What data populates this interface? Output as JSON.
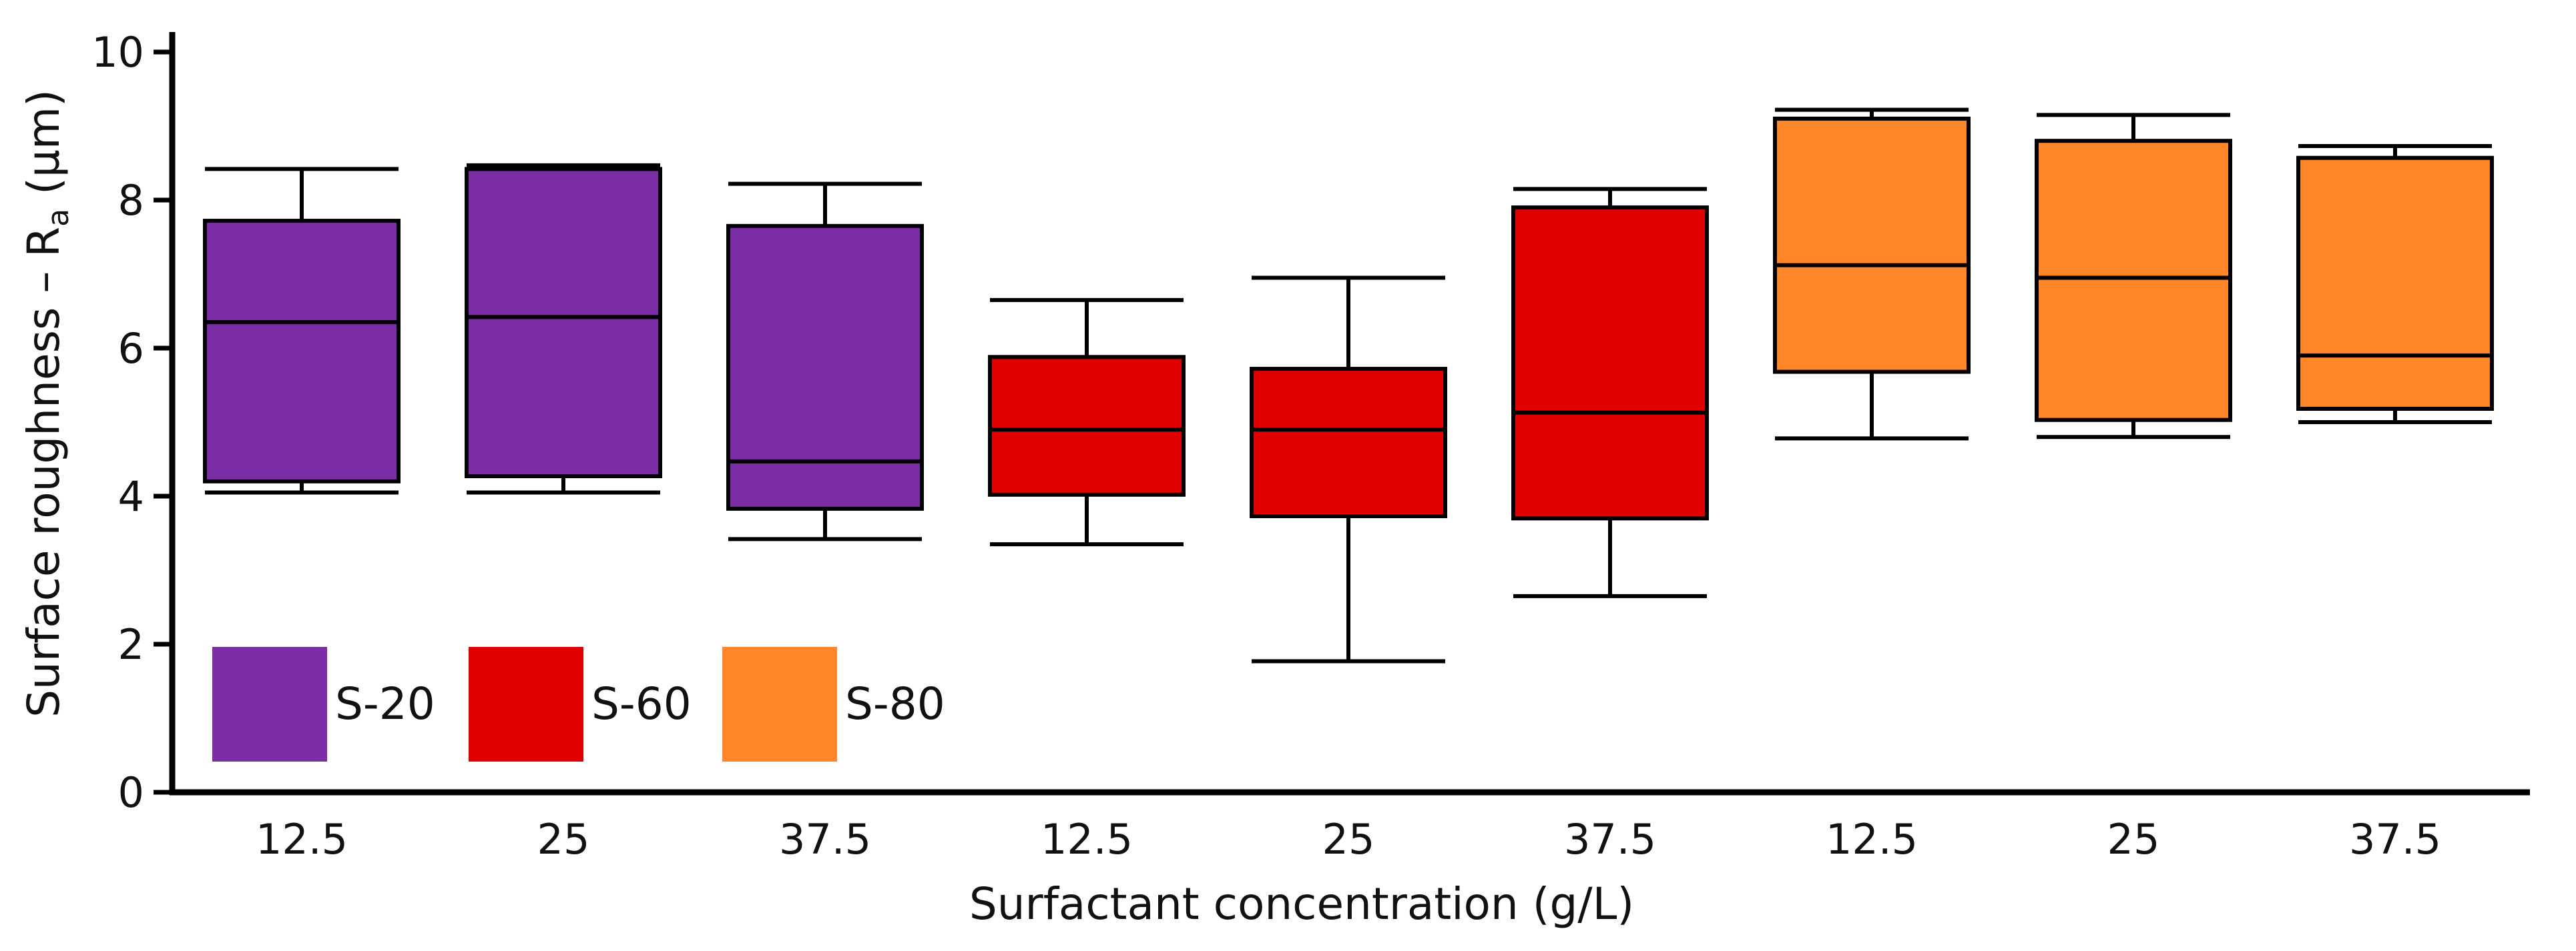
{
  "chart_data": {
    "type": "box",
    "title": "",
    "xlabel": "Surfactant concentration (g/L)",
    "ylabel": "Surface roughness – R",
    "ylabel_subscript": "a",
    "ylabel_unit": " (µm)",
    "ylim": [
      0,
      10
    ],
    "yticks": [
      0,
      2,
      4,
      6,
      8,
      10
    ],
    "grid": false,
    "legend_position": "bottom-left",
    "series": [
      {
        "name": "S-20",
        "color": "#7b2da6",
        "boxes": [
          {
            "category": "12.5",
            "whisker_low": 4.05,
            "q1": 4.2,
            "median": 6.35,
            "q3": 7.72,
            "whisker_high": 8.42
          },
          {
            "category": "25",
            "whisker_low": 4.05,
            "q1": 4.27,
            "median": 6.42,
            "q3": 8.42,
            "whisker_high": 8.47
          },
          {
            "category": "37.5",
            "whisker_low": 3.42,
            "q1": 3.83,
            "median": 4.47,
            "q3": 7.65,
            "whisker_high": 8.22
          }
        ]
      },
      {
        "name": "S-60",
        "color": "#e00000",
        "boxes": [
          {
            "category": "12.5",
            "whisker_low": 3.35,
            "q1": 4.02,
            "median": 4.9,
            "q3": 5.88,
            "whisker_high": 6.65
          },
          {
            "category": "25",
            "whisker_low": 1.77,
            "q1": 3.73,
            "median": 4.9,
            "q3": 5.72,
            "whisker_high": 6.95
          },
          {
            "category": "37.5",
            "whisker_low": 2.65,
            "q1": 3.7,
            "median": 5.13,
            "q3": 7.9,
            "whisker_high": 8.15
          }
        ]
      },
      {
        "name": "S-80",
        "color": "#ff8629",
        "boxes": [
          {
            "category": "12.5",
            "whisker_low": 4.78,
            "q1": 5.68,
            "median": 7.12,
            "q3": 9.1,
            "whisker_high": 9.22
          },
          {
            "category": "25",
            "whisker_low": 4.8,
            "q1": 5.03,
            "median": 6.95,
            "q3": 8.8,
            "whisker_high": 9.15
          },
          {
            "category": "37.5",
            "whisker_low": 5.0,
            "q1": 5.18,
            "median": 5.9,
            "q3": 8.57,
            "whisker_high": 8.73
          }
        ]
      }
    ]
  }
}
